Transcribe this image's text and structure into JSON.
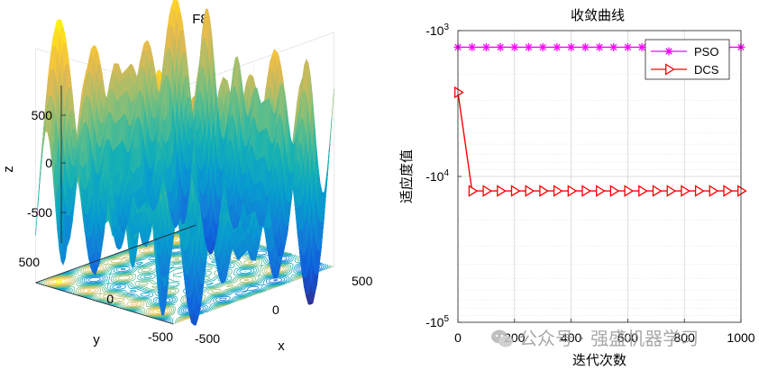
{
  "chart_data": [
    {
      "type": "surface3d",
      "title": "F8",
      "xlabel": "x",
      "ylabel": "y",
      "zlabel": "z",
      "xlim": [
        -500,
        500
      ],
      "ylim": [
        -500,
        500
      ],
      "zlim": [
        -840,
        840
      ],
      "x_ticks": [
        "-500",
        "0",
        "500"
      ],
      "y_ticks": [
        "-500",
        "0",
        "500"
      ],
      "z_ticks": [
        "-500",
        "0",
        "500"
      ],
      "function": "Schwefel: z = -x*sin(sqrt(|x|)) - y*sin(sqrt(|y|))",
      "contour_on_floor": true,
      "colormap": "parula"
    },
    {
      "type": "line",
      "title": "收敛曲线",
      "xlabel": "迭代次数",
      "ylabel": "适应度值",
      "xlim": [
        0,
        1000
      ],
      "x_ticks": [
        "0",
        "200",
        "400",
        "600",
        "800",
        "1000"
      ],
      "y_scale": "log-negative",
      "y_ticks": [
        "-10^3",
        "-10^4",
        "-10^5"
      ],
      "ylim": [
        -100000,
        -1000
      ],
      "grid": true,
      "legend_location": "top-right",
      "series": [
        {
          "name": "PSO",
          "color": "#ff00ff",
          "marker": "asterisk",
          "x": [
            0,
            50,
            100,
            150,
            200,
            250,
            300,
            350,
            400,
            450,
            500,
            550,
            600,
            650,
            700,
            750,
            800,
            850,
            900,
            950,
            1000
          ],
          "y": [
            -1300,
            -1300,
            -1300,
            -1300,
            -1300,
            -1300,
            -1300,
            -1300,
            -1300,
            -1300,
            -1300,
            -1300,
            -1300,
            -1300,
            -1300,
            -1300,
            -1300,
            -1300,
            -1300,
            -1300,
            -1300
          ]
        },
        {
          "name": "DCS",
          "color": "#ff0000",
          "marker": "triangle-right",
          "x": [
            0,
            50,
            100,
            150,
            200,
            250,
            300,
            350,
            400,
            450,
            500,
            550,
            600,
            650,
            700,
            750,
            800,
            850,
            900,
            950,
            1000
          ],
          "y": [
            -2650,
            -12569,
            -12569,
            -12569,
            -12569,
            -12569,
            -12569,
            -12569,
            -12569,
            -12569,
            -12569,
            -12569,
            -12569,
            -12569,
            -12569,
            -12569,
            -12569,
            -12569,
            -12569,
            -12569,
            -12569
          ]
        }
      ]
    }
  ],
  "watermark": {
    "text": "公众号 · 强盛机器学习"
  }
}
